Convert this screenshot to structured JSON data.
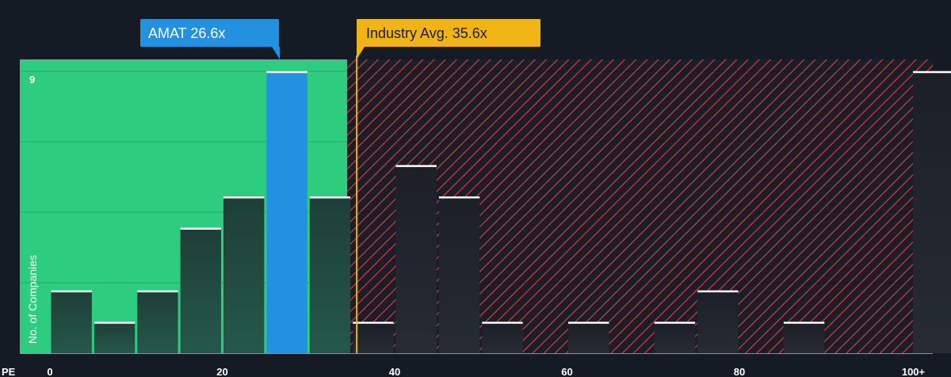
{
  "chart_data": {
    "type": "bar",
    "title": "",
    "xlabel": "PE",
    "ylabel": "No. of Companies",
    "x_ticks": [
      "0",
      "20",
      "40",
      "60",
      "80",
      "100+"
    ],
    "y_tick_label": "9",
    "ylim": [
      0,
      9.3
    ],
    "xlim": [
      -0.2,
      101.8
    ],
    "bin_width": 5,
    "bins": [
      {
        "start": 0,
        "value": 2
      },
      {
        "start": 5,
        "value": 1
      },
      {
        "start": 10,
        "value": 2
      },
      {
        "start": 15,
        "value": 4
      },
      {
        "start": 20,
        "value": 5
      },
      {
        "start": 25,
        "value": 9,
        "highlight": true
      },
      {
        "start": 30,
        "value": 5
      },
      {
        "start": 35,
        "value": 1
      },
      {
        "start": 40,
        "value": 6
      },
      {
        "start": 45,
        "value": 5
      },
      {
        "start": 50,
        "value": 1
      },
      {
        "start": 55,
        "value": 0
      },
      {
        "start": 60,
        "value": 1
      },
      {
        "start": 65,
        "value": 0
      },
      {
        "start": 70,
        "value": 1
      },
      {
        "start": 75,
        "value": 2
      },
      {
        "start": 80,
        "value": 0
      },
      {
        "start": 85,
        "value": 1
      },
      {
        "start": 90,
        "value": 0
      },
      {
        "start": 95,
        "value": 0
      },
      {
        "start": 100,
        "value": 9
      }
    ],
    "fair_zone_end": 34.5,
    "company": {
      "label": "AMAT 26.6x",
      "value": 26.6
    },
    "industry": {
      "label": "Industry Avg. 35.6x",
      "value": 35.6
    }
  },
  "colors": {
    "background": "#151b24",
    "green_zone": "#2ecc7e",
    "red_hatch": "#d93b43",
    "company": "#2391e0",
    "industry": "#f0b416",
    "bar_dark": "#1d2a2e"
  }
}
